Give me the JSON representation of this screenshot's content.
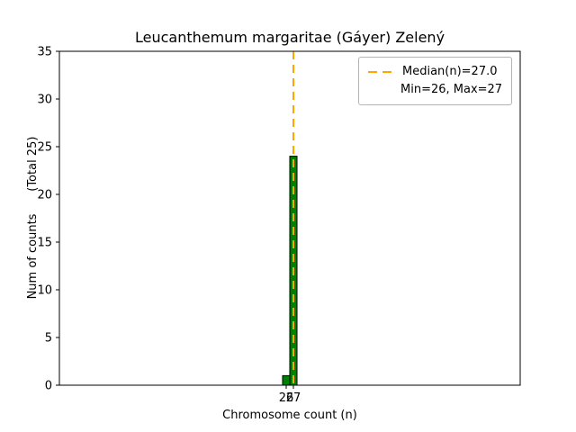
{
  "chart_data": {
    "type": "bar",
    "title": "Leucanthemum margaritae (Gáyer) Zelený",
    "xlabel": "Chromosome count (n)",
    "ylabel": "Num of counts      (Total 25)",
    "categories": [
      26,
      27
    ],
    "values": [
      1,
      24
    ],
    "xticks": [
      26,
      27
    ],
    "yticks": [
      0,
      5,
      10,
      15,
      20,
      25,
      30,
      35
    ],
    "xlim": [
      -5.5,
      58.5
    ],
    "ylim": [
      0,
      35
    ],
    "bar_color": "#008000",
    "bar_edge_color": "#000000",
    "median_line": {
      "x": 27.0,
      "color": "#ffa500",
      "style": "dashed",
      "width": 2
    },
    "legend": {
      "position": "upper right",
      "entries": [
        "Median(n)=27.0",
        "Min=26, Max=27"
      ]
    }
  }
}
